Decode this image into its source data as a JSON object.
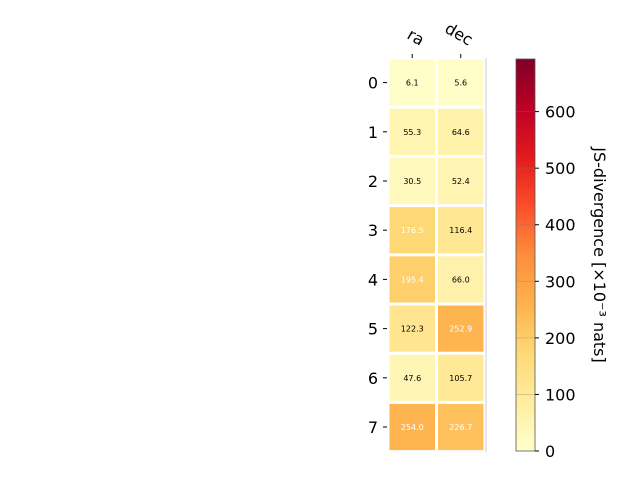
{
  "chart_data": {
    "type": "heatmap",
    "columns": [
      "ra",
      "dec"
    ],
    "rows": [
      "0",
      "1",
      "2",
      "3",
      "4",
      "5",
      "6",
      "7"
    ],
    "values": [
      [
        6.1,
        5.6
      ],
      [
        55.3,
        64.6
      ],
      [
        30.5,
        52.4
      ],
      [
        176.5,
        116.4
      ],
      [
        195.4,
        66.0
      ],
      [
        122.3,
        252.9
      ],
      [
        47.6,
        105.7
      ],
      [
        254.0,
        226.7
      ]
    ],
    "cell_labels": [
      [
        "6.1",
        "5.6"
      ],
      [
        "55.3",
        "64.6"
      ],
      [
        "30.5",
        "52.4"
      ],
      [
        "176.5",
        "116.4"
      ],
      [
        "195.4",
        "66.0"
      ],
      [
        "122.3",
        "252.9"
      ],
      [
        "47.6",
        "105.7"
      ],
      [
        "254.0",
        "226.7"
      ]
    ],
    "colorbar": {
      "label": "JS-divergence [×10⁻³ nats]",
      "range": [
        0,
        693
      ],
      "ticks": [
        0,
        100,
        200,
        300,
        400,
        500,
        600
      ],
      "colormap": "YlOrRd"
    }
  }
}
